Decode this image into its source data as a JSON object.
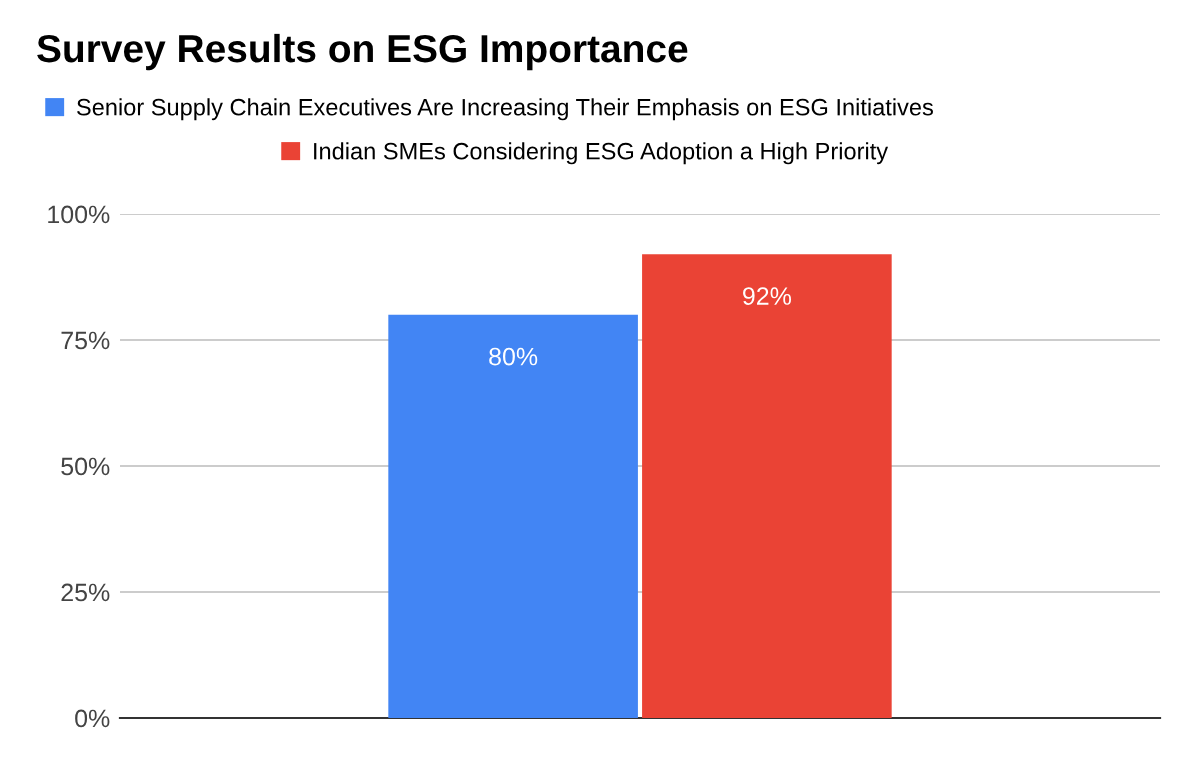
{
  "chart_data": {
    "type": "bar",
    "title": "Survey Results on ESG Importance",
    "categories": [
      null
    ],
    "series": [
      {
        "name": "Senior Supply Chain Executives Are Increasing Their Emphasis on ESG Initiatives",
        "color": "#4285f4",
        "values": [
          80
        ],
        "value_labels": [
          "80%"
        ]
      },
      {
        "name": "Indian SMEs Considering ESG Adoption a High Priority",
        "color": "#ea4335",
        "values": [
          92
        ],
        "value_labels": [
          "92%"
        ]
      }
    ],
    "ylim": [
      0,
      100
    ],
    "yticks": [
      {
        "value": 0,
        "label": "0%"
      },
      {
        "value": 25,
        "label": "25%"
      },
      {
        "value": 50,
        "label": "50%"
      },
      {
        "value": 75,
        "label": "75%"
      },
      {
        "value": 100,
        "label": "100%"
      }
    ],
    "grid": "y",
    "legend": "top"
  }
}
